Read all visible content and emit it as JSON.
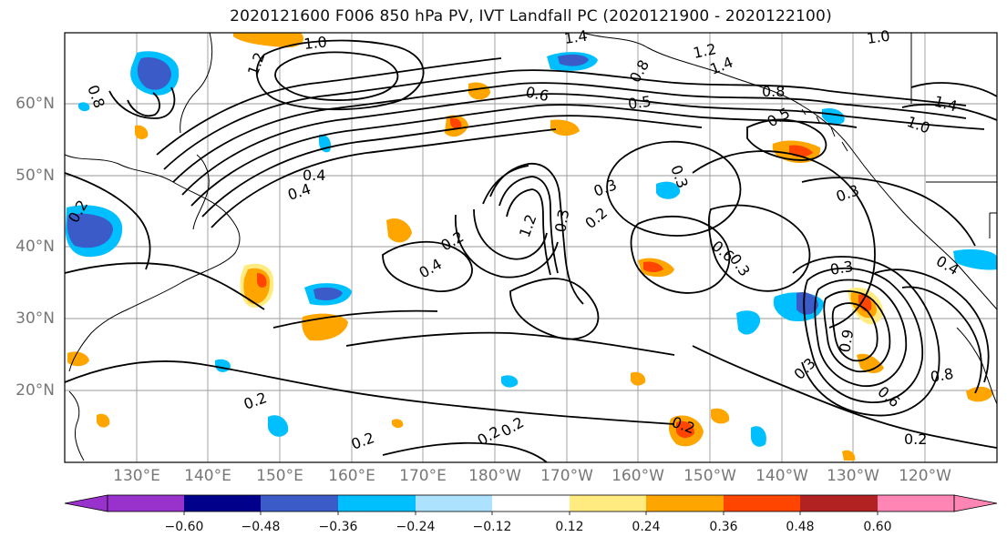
{
  "title": "2020121600 F006 850 hPa PV, IVT Landfall PC (2020121900 - 2020122100)",
  "lat_labels": [
    "60°N",
    "50°N",
    "40°N",
    "30°N",
    "20°N"
  ],
  "lon_labels": [
    "130°E",
    "140°E",
    "150°E",
    "160°E",
    "170°E",
    "180°W",
    "170°W",
    "160°W",
    "150°W",
    "140°W",
    "130°W",
    "120°W"
  ],
  "colorbar": {
    "tick_labels": [
      "−0.60",
      "−0.48",
      "−0.36",
      "−0.24",
      "−0.12",
      "0.12",
      "0.24",
      "0.36",
      "0.48",
      "0.60"
    ],
    "colors": [
      "#9932CC",
      "#00008B",
      "#3A5BC8",
      "#00BFFF",
      "#ADE2FF",
      "#FFFFFF",
      "#FFEB80",
      "#FFA500",
      "#FF4500",
      "#B22222",
      "#FF85B5"
    ]
  },
  "contour_labels": [
    "1.0",
    "1.4",
    "1.2",
    "1.4",
    "1.0",
    "0.8",
    "1.2",
    "0.6",
    "0.5",
    "0.8",
    "0.5",
    "1.4",
    "1.0",
    "0.8",
    "0.4",
    "0.4",
    "0.3",
    "0.3",
    "0.2",
    "1.2",
    "0.2",
    "0.4",
    "0.3",
    "0.6",
    "0.3",
    "0.3",
    "0.4",
    "0.3",
    "0.3",
    "0.9",
    "0.8",
    "0.6",
    "0.2",
    "0.2",
    "0.2",
    "0.2",
    "0.2",
    "0.2",
    "0.2"
  ]
}
